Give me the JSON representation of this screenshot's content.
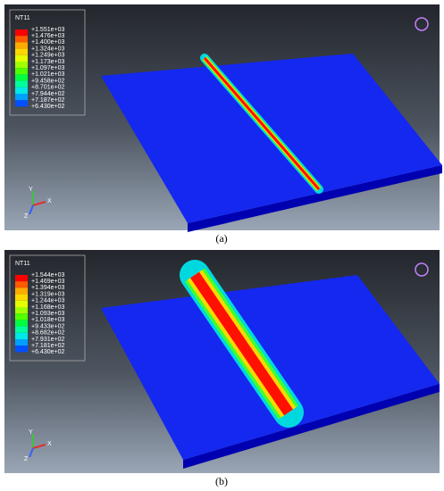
{
  "panels": [
    {
      "legend": {
        "title": "NT11",
        "labels": [
          "+1.551e+03",
          "+1.476e+03",
          "+1.400e+03",
          "+1.324e+03",
          "+1.249e+03",
          "+1.173e+03",
          "+1.097e+03",
          "+1.021e+03",
          "+9.458e+02",
          "+8.701e+02",
          "+7.944e+02",
          "+7.187e+02",
          "+6.430e+02"
        ]
      },
      "triad": {
        "y": "Y",
        "x": "X",
        "z": "Z"
      },
      "caption": "(a)"
    },
    {
      "legend": {
        "title": "NT11",
        "labels": [
          "+1.544e+03",
          "+1.469e+03",
          "+1.394e+03",
          "+1.319e+03",
          "+1.244e+03",
          "+1.168e+03",
          "+1.093e+03",
          "+1.018e+03",
          "+9.433e+02",
          "+8.682e+02",
          "+7.931e+02",
          "+7.181e+02",
          "+6.430e+02"
        ]
      },
      "triad": {
        "y": "Y",
        "x": "X",
        "z": "Z"
      },
      "caption": "(b)"
    }
  ]
}
